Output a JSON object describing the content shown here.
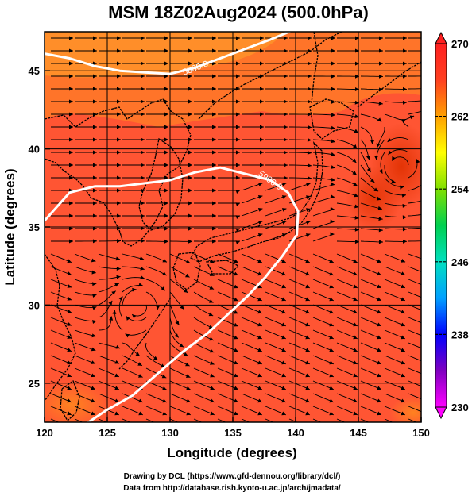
{
  "title": "MSM 18Z02Aug2024 (500.0hPa)",
  "x_axis": {
    "label": "Longitude (degrees)",
    "range": [
      120,
      150
    ],
    "ticks": [
      "120",
      "125",
      "130",
      "135",
      "140",
      "145",
      "150"
    ]
  },
  "y_axis": {
    "label": "Latitude  (degrees)",
    "range": [
      22.5,
      47.5
    ],
    "ticks": [
      "25",
      "30",
      "35",
      "40",
      "45"
    ]
  },
  "colorbar": {
    "min": 230,
    "max": 270,
    "labels": [
      "270",
      "262",
      "254",
      "246",
      "238",
      "230"
    ],
    "colors": [
      "#ff00ff",
      "#8000c0",
      "#0000ff",
      "#00a0ff",
      "#00e0c0",
      "#00d050",
      "#80e000",
      "#ffff00",
      "#ffa000",
      "#ff4020",
      "#ff2020"
    ]
  },
  "contours": [
    {
      "value": 5880.0,
      "label": "5880.0",
      "points": [
        [
          120,
          46.1
        ],
        [
          122,
          45.8
        ],
        [
          124,
          45.3
        ],
        [
          126,
          45.0
        ],
        [
          128,
          44.9
        ],
        [
          130,
          44.8
        ],
        [
          132,
          45.2
        ],
        [
          134,
          45.8
        ],
        [
          136,
          46.4
        ],
        [
          138,
          47.0
        ],
        [
          139.5,
          47.5
        ]
      ]
    },
    {
      "value": 5900.0,
      "label": "5900.0",
      "points": [
        [
          120,
          35.4
        ],
        [
          122,
          37.2
        ],
        [
          124,
          37.6
        ],
        [
          126,
          37.6
        ],
        [
          128,
          37.8
        ],
        [
          130,
          38.0
        ],
        [
          132,
          38.5
        ],
        [
          134,
          38.8
        ],
        [
          136,
          38.4
        ],
        [
          138,
          38.0
        ],
        [
          139.4,
          37.2
        ],
        [
          140.2,
          36.0
        ],
        [
          140.1,
          34.5
        ],
        [
          139,
          33.2
        ],
        [
          137.6,
          31.8
        ],
        [
          136.2,
          30.6
        ],
        [
          134.6,
          29.4
        ],
        [
          133,
          28.2
        ],
        [
          131,
          27.0
        ],
        [
          129,
          25.6
        ],
        [
          127,
          24.2
        ],
        [
          125,
          23.3
        ],
        [
          123.5,
          22.5
        ]
      ]
    }
  ],
  "grid_lines": {
    "longitudes": [
      125,
      130,
      135,
      140,
      145
    ],
    "latitudes": [
      25,
      30,
      35,
      40,
      45
    ]
  },
  "footer": {
    "line1": "Drawing by DCL (https://www.gfd-dennou.org/library/dcl/)",
    "line2": "Data from http://database.rish.kyoto-u.ac.jp/arch/jmadata/"
  }
}
